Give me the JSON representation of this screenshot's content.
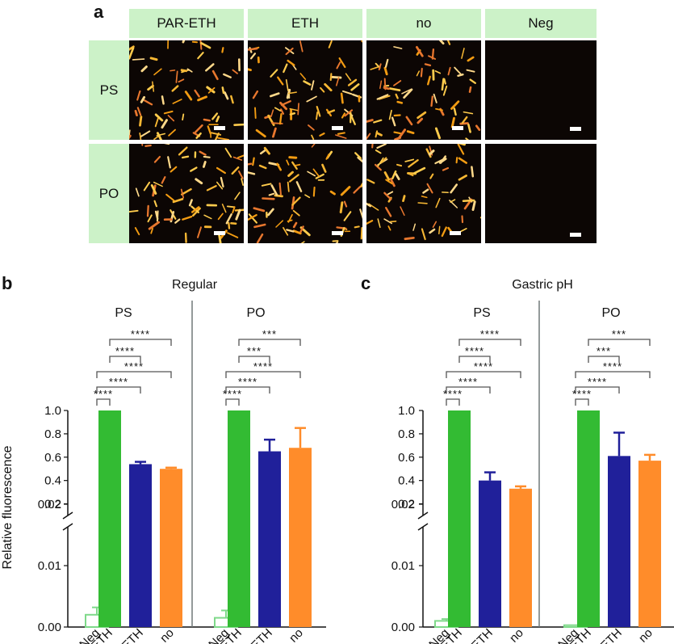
{
  "panel_a": {
    "letter": "a",
    "columns": [
      "PAR-ETH",
      "ETH",
      "no",
      "Neg"
    ],
    "rows": [
      "PS",
      "PO"
    ]
  },
  "panel_b": {
    "letter": "b",
    "title": "Regular"
  },
  "panel_c": {
    "letter": "c",
    "title": "Gastric pH"
  },
  "colors": {
    "neg": "#7fd98a",
    "par_eth": "#33bb33",
    "eth": "#20209a",
    "no": "#ff8c2a",
    "header_bg": "#ccf2c8",
    "divider": "#707878",
    "bracket": "#555555"
  },
  "chart_data": [
    {
      "type": "bar",
      "title": "Regular",
      "ylabel": "Relative fluorescence",
      "y_axis": "broken",
      "ylim_lower": [
        0,
        0.02
      ],
      "ylim_upper": [
        0.1,
        1.0
      ],
      "yticks_lower": [
        "0.00",
        "0.01",
        "0.02"
      ],
      "yticks_upper": [
        "0.2",
        "0.4",
        "0.6",
        "0.8",
        "1.0"
      ],
      "categories": [
        "Neg",
        "PAR-ETH",
        "ETH",
        "no"
      ],
      "groups": [
        {
          "name": "PS",
          "values": [
            0.002,
            1.0,
            0.54,
            0.5
          ],
          "errors": [
            0.0012,
            0.0,
            0.02,
            0.01
          ],
          "significance": [
            {
              "from": "PAR-ETH",
              "to": "no",
              "label": "****"
            },
            {
              "from": "PAR-ETH",
              "to": "ETH",
              "label": "****"
            },
            {
              "from": "Neg",
              "to": "no",
              "label": "****"
            },
            {
              "from": "Neg",
              "to": "ETH",
              "label": "****"
            },
            {
              "from": "Neg",
              "to": "PAR-ETH",
              "label": "****"
            }
          ]
        },
        {
          "name": "PO",
          "values": [
            0.0015,
            1.0,
            0.65,
            0.68
          ],
          "errors": [
            0.0012,
            0.0,
            0.1,
            0.17
          ],
          "significance": [
            {
              "from": "PAR-ETH",
              "to": "no",
              "label": "***"
            },
            {
              "from": "PAR-ETH",
              "to": "ETH",
              "label": "***"
            },
            {
              "from": "Neg",
              "to": "no",
              "label": "****"
            },
            {
              "from": "Neg",
              "to": "ETH",
              "label": "****"
            },
            {
              "from": "Neg",
              "to": "PAR-ETH",
              "label": "****"
            }
          ]
        }
      ]
    },
    {
      "type": "bar",
      "title": "Gastric pH",
      "ylabel": "",
      "y_axis": "broken",
      "ylim_lower": [
        0,
        0.02
      ],
      "ylim_upper": [
        0.1,
        1.0
      ],
      "yticks_lower": [
        "0.00",
        "0.01",
        "0.02"
      ],
      "yticks_upper": [
        "0.2",
        "0.4",
        "0.6",
        "0.8",
        "1.0"
      ],
      "categories": [
        "Neg",
        "PAR-ETH",
        "ETH",
        "no"
      ],
      "groups": [
        {
          "name": "PS",
          "values": [
            0.001,
            1.0,
            0.4,
            0.33
          ],
          "errors": [
            0.0003,
            0.0,
            0.07,
            0.02
          ],
          "significance": [
            {
              "from": "PAR-ETH",
              "to": "no",
              "label": "****"
            },
            {
              "from": "PAR-ETH",
              "to": "ETH",
              "label": "****"
            },
            {
              "from": "Neg",
              "to": "no",
              "label": "****"
            },
            {
              "from": "Neg",
              "to": "ETH",
              "label": "****"
            },
            {
              "from": "Neg",
              "to": "PAR-ETH",
              "label": "****"
            }
          ]
        },
        {
          "name": "PO",
          "values": [
            0.0003,
            1.0,
            0.61,
            0.57
          ],
          "errors": [
            0.0,
            0.0,
            0.2,
            0.05
          ],
          "significance": [
            {
              "from": "PAR-ETH",
              "to": "no",
              "label": "***"
            },
            {
              "from": "PAR-ETH",
              "to": "ETH",
              "label": "***"
            },
            {
              "from": "Neg",
              "to": "no",
              "label": "****"
            },
            {
              "from": "Neg",
              "to": "ETH",
              "label": "****"
            },
            {
              "from": "Neg",
              "to": "PAR-ETH",
              "label": "****"
            }
          ]
        }
      ]
    }
  ]
}
